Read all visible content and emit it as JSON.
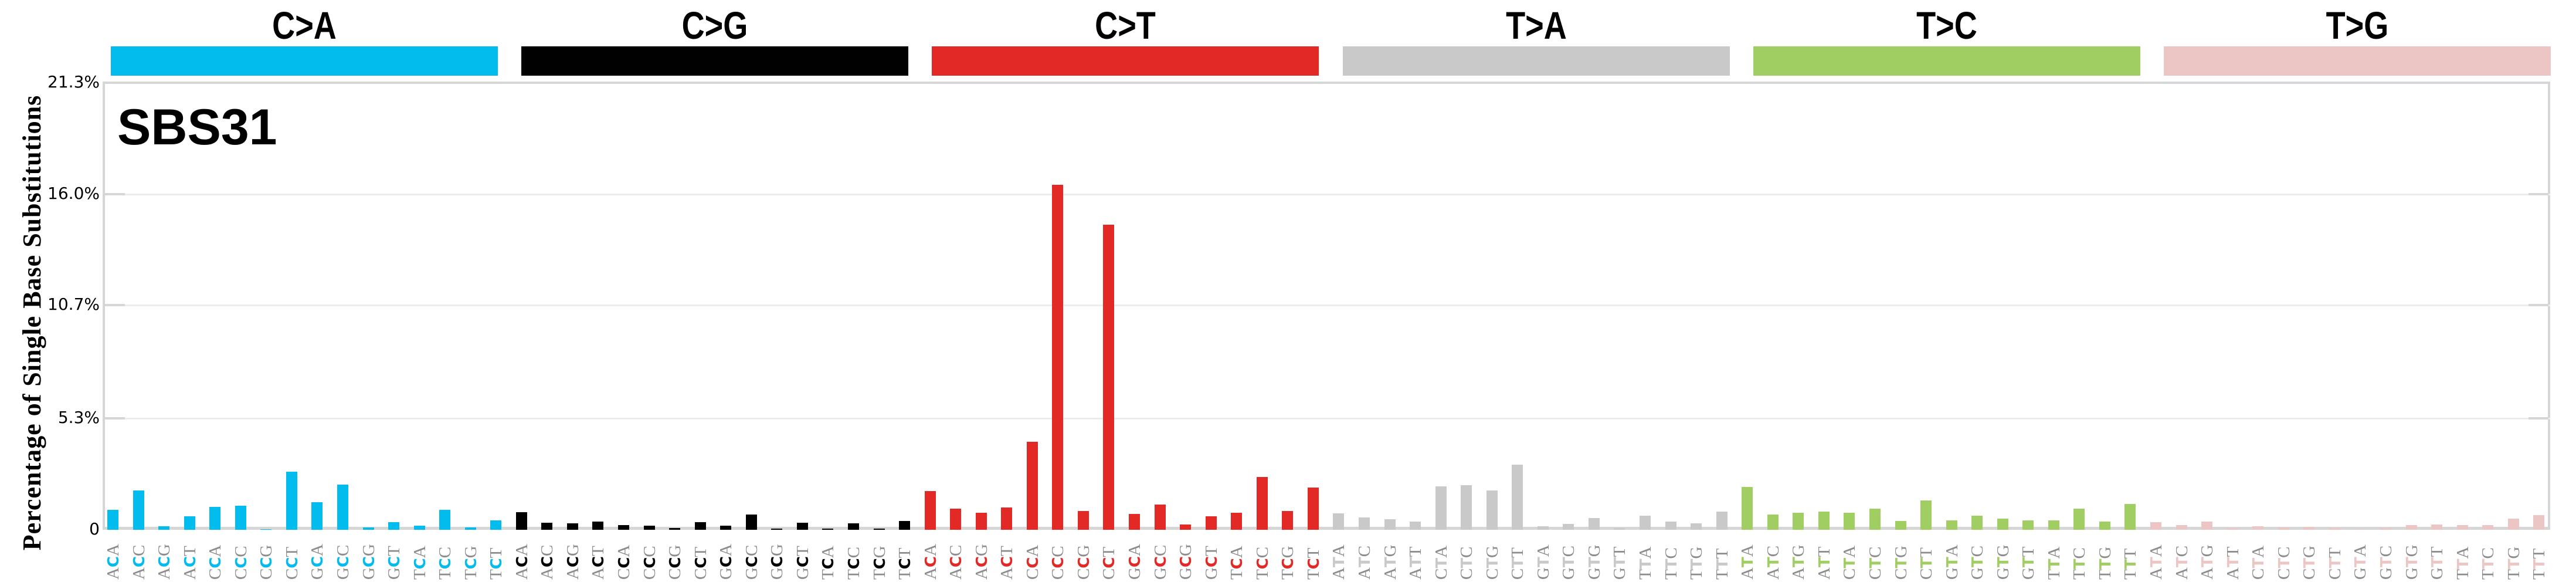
{
  "chart_data": {
    "type": "bar",
    "title": "SBS31",
    "xlabel": "",
    "ylabel": "Percentage of Single Base Substitutions",
    "ylim": [
      0,
      21.3
    ],
    "yticks": [
      0,
      5.3,
      10.7,
      16.0,
      21.3
    ],
    "ytick_labels": [
      "0",
      "5.3%",
      "10.7%",
      "16.0%",
      "21.3%"
    ],
    "grid": true,
    "legend": "none",
    "groups": [
      {
        "name": "C>A",
        "color": "#03BCEE",
        "ref": "C",
        "contexts": [
          "ACA",
          "ACC",
          "ACG",
          "ACT",
          "CCA",
          "CCC",
          "CCG",
          "CCT",
          "GCA",
          "GCC",
          "GCG",
          "GCT",
          "TCA",
          "TCC",
          "TCG",
          "TCT"
        ],
        "values": [
          0.94,
          1.86,
          0.16,
          0.63,
          1.08,
          1.16,
          0.02,
          2.78,
          1.3,
          2.14,
          0.1,
          0.35,
          0.19,
          0.94,
          0.1,
          0.44
        ]
      },
      {
        "name": "C>G",
        "color": "#010101",
        "ref": "C",
        "contexts": [
          "ACA",
          "ACC",
          "ACG",
          "ACT",
          "CCA",
          "CCC",
          "CCG",
          "CCT",
          "GCA",
          "GCC",
          "GCG",
          "GCT",
          "TCA",
          "TCC",
          "TCG",
          "TCT"
        ],
        "values": [
          0.83,
          0.33,
          0.3,
          0.38,
          0.21,
          0.19,
          0.07,
          0.35,
          0.19,
          0.74,
          0.05,
          0.33,
          0.05,
          0.3,
          0.05,
          0.41
        ]
      },
      {
        "name": "C>T",
        "color": "#E32926",
        "ref": "C",
        "contexts": [
          "ACA",
          "ACC",
          "ACG",
          "ACT",
          "CCA",
          "CCC",
          "CCG",
          "CCT",
          "GCA",
          "GCC",
          "GCG",
          "GCT",
          "TCA",
          "TCC",
          "TCG",
          "TCT"
        ],
        "values": [
          1.84,
          1.0,
          0.81,
          1.06,
          4.18,
          16.44,
          0.89,
          14.54,
          0.75,
          1.2,
          0.25,
          0.65,
          0.81,
          2.51,
          0.89,
          2.01
        ]
      },
      {
        "name": "T>A",
        "color": "#CAC9C9",
        "ref": "T",
        "contexts": [
          "ATA",
          "ATC",
          "ATG",
          "ATT",
          "CTA",
          "CTC",
          "CTG",
          "CTT",
          "GTA",
          "GTC",
          "GTG",
          "GTT",
          "TTA",
          "TTC",
          "TTG",
          "TTT"
        ],
        "values": [
          0.77,
          0.6,
          0.49,
          0.4,
          2.07,
          2.12,
          1.87,
          3.11,
          0.18,
          0.29,
          0.57,
          0.07,
          0.66,
          0.38,
          0.32,
          0.88
        ]
      },
      {
        "name": "T>C",
        "color": "#A1CE63",
        "ref": "T",
        "contexts": [
          "ATA",
          "ATC",
          "ATG",
          "ATT",
          "CTA",
          "CTC",
          "CTG",
          "CTT",
          "GTA",
          "GTC",
          "GTG",
          "GTT",
          "TTA",
          "TTC",
          "TTG",
          "TTT"
        ],
        "values": [
          2.04,
          0.74,
          0.8,
          0.86,
          0.8,
          1.0,
          0.43,
          1.39,
          0.46,
          0.66,
          0.52,
          0.46,
          0.46,
          1.02,
          0.4,
          1.22
        ]
      },
      {
        "name": "T>G",
        "color": "#EBC6C4",
        "ref": "T",
        "contexts": [
          "ATA",
          "ATC",
          "ATG",
          "ATT",
          "CTA",
          "CTC",
          "CTG",
          "CTT",
          "GTA",
          "GTC",
          "GTG",
          "GTT",
          "TTA",
          "TTC",
          "TTG",
          "TTT"
        ],
        "values": [
          0.35,
          0.23,
          0.4,
          0.07,
          0.18,
          0.12,
          0.15,
          0.09,
          0.02,
          0.07,
          0.23,
          0.26,
          0.21,
          0.23,
          0.52,
          0.71
        ]
      }
    ]
  },
  "flank_color": "#8c8c8c",
  "axis_color": "#d6d6d6",
  "grid_color": "#ececec"
}
